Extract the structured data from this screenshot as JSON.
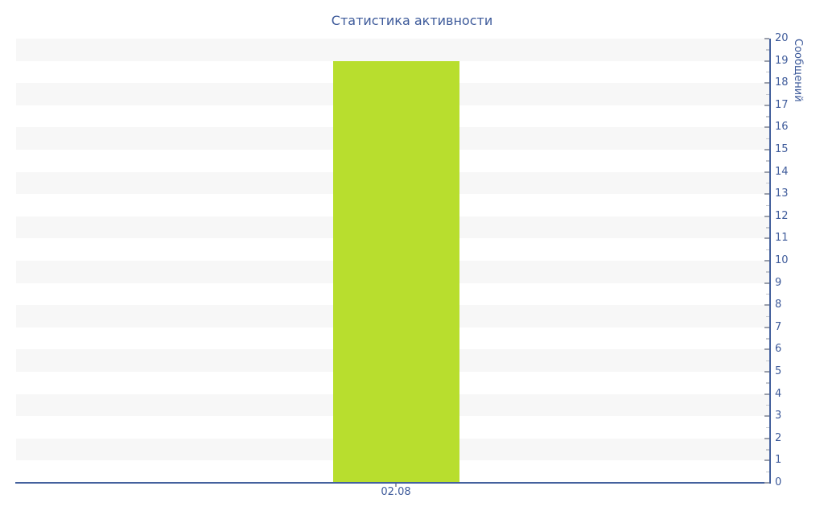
{
  "chart_data": {
    "type": "bar",
    "title": "Статистика активности",
    "ylabel": "Сообщений",
    "xlabel": "",
    "categories": [
      "02.08"
    ],
    "values": [
      19
    ],
    "ylim": [
      0,
      20
    ],
    "y_ticks": [
      0,
      1,
      2,
      3,
      4,
      5,
      6,
      7,
      8,
      9,
      10,
      11,
      12,
      13,
      14,
      15,
      16,
      17,
      18,
      19,
      20
    ],
    "y_minor_tick_step": 0.5,
    "grid": "alternating-horizontal-bands",
    "legend": "none",
    "colors": {
      "bar": "#b8de2e",
      "axis": "#44619d",
      "text": "#3d5a9a",
      "band": "#f7f7f7",
      "background": "#ffffff",
      "major_tick": "#9a9fab",
      "minor_tick": "#c3c6cd"
    }
  }
}
